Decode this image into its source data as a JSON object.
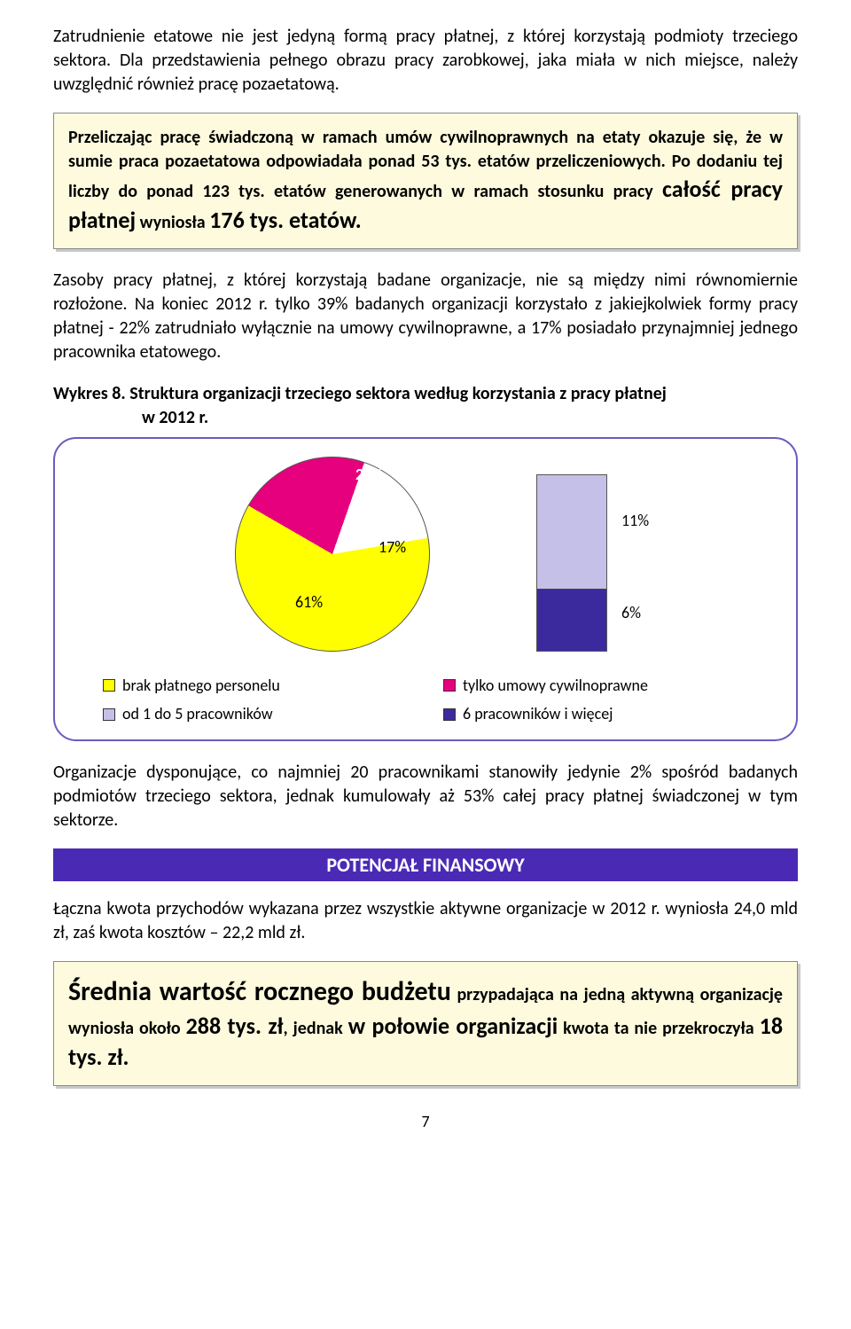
{
  "para1": "Zatrudnienie etatowe nie jest jedyną formą pracy płatnej, z której korzystają podmioty trzeciego sektora. Dla przedstawienia pełnego obrazu pracy zarobkowej, jaka miała w nich miejsce, należy uwzględnić również pracę pozaetatową.",
  "callout1": {
    "pre": "Przeliczając pracę świadczoną w ramach umów cywilnoprawnych na etaty okazuje się, że w sumie praca pozaetatowa odpowiadała ponad 53 tys. etatów przeliczeniowych. Po dodaniu tej liczby do ponad 123 tys. etatów generowanych w ramach stosunku pracy ",
    "big_a": "całość pracy płatnej",
    "mid": " wyniosła ",
    "big_b": "176 tys. etatów."
  },
  "para2": "Zasoby pracy płatnej, z której korzystają badane organizacje, nie są między nimi równomiernie rozłożone. Na koniec 2012 r. tylko 39% badanych organizacji korzystało z jakiejkolwiek formy pracy płatnej - 22% zatrudniało wyłącznie na umowy cywilnoprawne, a 17% posiadało przynajmniej jednego pracownika etatowego.",
  "chart_title_a": "Wykres 8. Struktura organizacji trzeciego sektora według korzystania z pracy płatnej",
  "chart_title_b": "w 2012 r.",
  "pie": {
    "segments": [
      {
        "label": "61%",
        "value": 61,
        "color": "#ffff00"
      },
      {
        "label": "22%",
        "value": 22,
        "color": "#e6007e"
      },
      {
        "label": "17%",
        "value": 17,
        "color": "#ffffff"
      }
    ],
    "label_22": "22%",
    "label_17": "17%",
    "label_61": "61%",
    "border": "#555555"
  },
  "bar": {
    "top": {
      "label": "11%",
      "value": 11,
      "color": "#c5c0e8"
    },
    "bottom": {
      "label": "6%",
      "value": 6,
      "color": "#3b2a9e"
    },
    "border": "#555555"
  },
  "legend": [
    {
      "label": "brak płatnego personelu",
      "color": "#ffff00"
    },
    {
      "label": "tylko umowy cywilnoprawne",
      "color": "#e6007e"
    },
    {
      "label": "od 1 do 5 pracowników",
      "color": "#c5c0e8"
    },
    {
      "label": "6 pracowników i więcej",
      "color": "#3b2a9e"
    }
  ],
  "para3": "Organizacje dysponujące, co najmniej 20 pracownikami stanowiły jedynie 2% spośród badanych podmiotów trzeciego sektora, jednak kumulowały aż 53% całej pracy płatnej świadczonej w tym sektorze.",
  "section_band": "POTENCJAŁ FINANSOWY",
  "para4": "Łączna kwota przychodów wykazana przez wszystkie aktywne organizacje w 2012 r. wyniosła 24,0 mld zł, zaś kwota kosztów – 22,2 mld zł.",
  "callout2": {
    "a": "Średnia wartość rocznego budżetu",
    "b": " przypadająca na jedną aktywną organizację wyniosła około ",
    "c": "288 tys. zł",
    "d": ", jednak ",
    "e": "w połowie organizacji",
    "f": " kwota ta nie przekroczyła ",
    "g": "18 tys. zł."
  },
  "page_number": "7"
}
